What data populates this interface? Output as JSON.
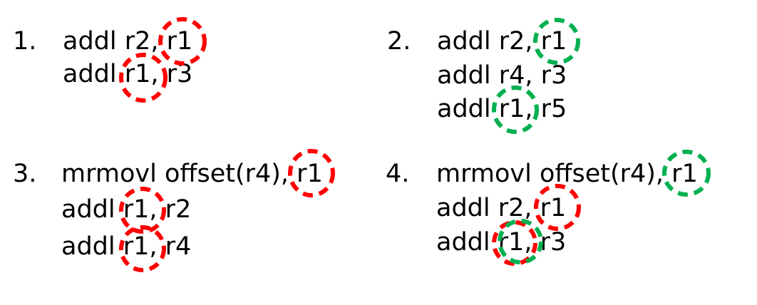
{
  "colors": {
    "red": "#ff0000",
    "green": "#00b050"
  },
  "examples": [
    {
      "number": "1.",
      "lines": [
        "addl r2, r1",
        "addl r1, r3"
      ]
    },
    {
      "number": "2.",
      "lines": [
        "addl r2, r1",
        "addl r4, r3",
        "addl r1, r5"
      ]
    },
    {
      "number": "3.",
      "lines": [
        "mrmovl offset(r4), r1",
        "addl r1, r2",
        "addl r1, r4"
      ]
    },
    {
      "number": "4.",
      "lines": [
        "mrmovl offset(r4), r1",
        "addl r2, r1",
        "addl r1, r3"
      ]
    }
  ]
}
